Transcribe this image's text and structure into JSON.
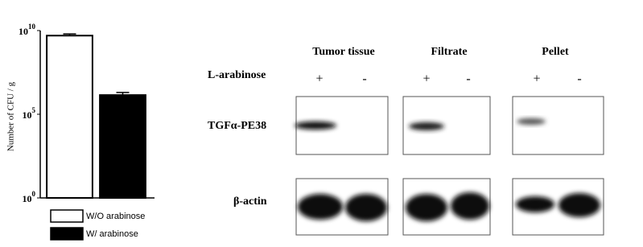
{
  "chart_data": {
    "type": "bar",
    "y_label": "Number of CFU / g",
    "categories": [
      null,
      null
    ],
    "series": [
      {
        "name": "W/O arabinose",
        "color": "#ffffff",
        "values": [
          5000000000,
          null
        ],
        "errors": [
          1300000000,
          null
        ]
      },
      {
        "name": "W/ arabinose",
        "color": "#000000",
        "values": [
          null,
          1400000
        ],
        "errors": [
          null,
          600000
        ]
      }
    ],
    "log": true,
    "ylim": [
      1,
      10000000000
    ],
    "yticks": [
      {
        "value": 1,
        "label": "10",
        "exponent": "0"
      },
      {
        "value": 100000,
        "label": "10",
        "exponent": "5"
      },
      {
        "value": 10000000000,
        "label": "10",
        "exponent": "10"
      }
    ]
  },
  "blot": {
    "columns": [
      "Tumor tissue",
      "Filtrate",
      "Pellet"
    ],
    "treatment_label": "L-arabinose",
    "signs": [
      "+",
      "-",
      "+",
      "-",
      "+",
      "-"
    ],
    "rows": [
      "TGFα-PE38",
      "β-actin"
    ]
  }
}
